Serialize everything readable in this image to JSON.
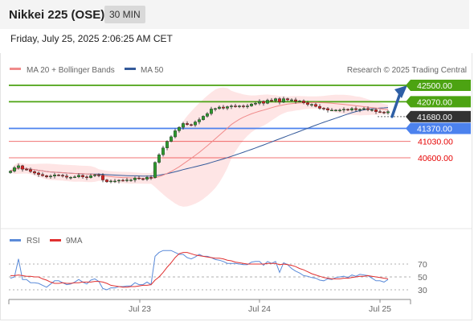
{
  "header": {
    "title": "Nikkei 225 (OSE)",
    "timeframe": "30 MIN",
    "datetime": "Friday, July 25, 2025 2:06:25 AM CET"
  },
  "colors": {
    "resistance": "#4ca312",
    "current": "#333333",
    "pivot": "#4c82ee",
    "support": "#e60000",
    "bollinger": "#fdd3d3",
    "ma20": "#f08b8b",
    "ma50": "#345a9a",
    "arrow": "#2e5fa5",
    "candle_up": "#2d9a2d",
    "candle_down": "#d42020",
    "rsi": "#5b8bd9",
    "rsi_ma": "#e03030"
  },
  "chart_data": [
    {
      "type": "candlestick",
      "title": "",
      "legend": [
        "MA 20 + Bollinger Bands",
        "MA 50"
      ],
      "watermark": "Research © 2025 Trading Central",
      "x_ticks": [
        "Jul 23",
        "Jul 24",
        "Jul 25"
      ],
      "price_axis": {
        "min": 40000,
        "max": 42750
      },
      "current_price": {
        "label": "41680.00",
        "value": 41680
      },
      "levels": [
        {
          "label": "42500.00",
          "value": 42500,
          "kind": "resistance"
        },
        {
          "label": "42070.00",
          "value": 42070,
          "kind": "resistance"
        },
        {
          "label": "41370.00",
          "value": 41370,
          "kind": "pivot"
        },
        {
          "label": "41030.00",
          "value": 41030,
          "kind": "support"
        },
        {
          "label": "40600.00",
          "value": 40600,
          "kind": "support"
        }
      ],
      "close": [
        40250,
        40340,
        40390,
        40300,
        40290,
        40240,
        40200,
        40160,
        40130,
        40100,
        40120,
        40150,
        40140,
        40120,
        40090,
        40090,
        40100,
        40140,
        40100,
        40080,
        40130,
        40150,
        40140,
        40020,
        39970,
        39990,
        39990,
        40010,
        40000,
        40020,
        40020,
        40070,
        40050,
        40040,
        40090,
        40080,
        40480,
        40680,
        40860,
        41030,
        41150,
        41310,
        41400,
        41500,
        41470,
        41460,
        41540,
        41600,
        41690,
        41760,
        41880,
        41890,
        41930,
        41900,
        41940,
        41960,
        41940,
        41960,
        41950,
        41960,
        42010,
        42030,
        42080,
        42030,
        42110,
        42100,
        42150,
        42060,
        42150,
        42120,
        42120,
        42080,
        42090,
        42040,
        42000,
        42000,
        41950,
        41900,
        41890,
        41850,
        41850,
        41850,
        41850,
        41870,
        41850,
        41890,
        41860,
        41870,
        41890,
        41860,
        41860,
        41810,
        41800,
        41780,
        41810
      ]
    },
    {
      "type": "line",
      "title": "",
      "legend": [
        "RSI",
        "9MA"
      ],
      "y_ticks": [
        70,
        50,
        30
      ],
      "ylim": [
        0,
        100
      ],
      "series": [
        {
          "name": "RSI",
          "values": [
            48,
            50,
            78,
            46,
            46,
            41,
            41,
            40,
            37,
            34,
            39,
            44,
            44,
            41,
            38,
            39,
            42,
            46,
            42,
            39,
            45,
            47,
            43,
            32,
            30,
            33,
            33,
            35,
            35,
            36,
            36,
            41,
            38,
            38,
            42,
            38,
            82,
            88,
            91,
            91,
            91,
            88,
            85,
            85,
            80,
            78,
            81,
            85,
            82,
            82,
            80,
            77,
            76,
            74,
            71,
            71,
            71,
            70,
            69,
            69,
            73,
            74,
            74,
            68,
            74,
            71,
            74,
            57,
            72,
            69,
            63,
            59,
            56,
            52,
            51,
            49,
            48,
            45,
            44,
            47,
            46,
            49,
            50,
            51,
            49,
            53,
            51,
            54,
            53,
            52,
            48,
            44,
            44,
            42,
            46
          ]
        },
        {
          "name": "9MA",
          "values": [
            52,
            52,
            53,
            52,
            51,
            51,
            50,
            50,
            47,
            45,
            42,
            40,
            40,
            41,
            40,
            40,
            41,
            41,
            42,
            42,
            42,
            43,
            43,
            42,
            40,
            37,
            36,
            35,
            34,
            34,
            35,
            35,
            36,
            37,
            37,
            38,
            45,
            50,
            57,
            65,
            72,
            80,
            86,
            88,
            88,
            86,
            84,
            83,
            82,
            81,
            80,
            79,
            79,
            78,
            76,
            75,
            73,
            72,
            71,
            70,
            70,
            70,
            70,
            70,
            71,
            71,
            71,
            69,
            70,
            69,
            68,
            66,
            63,
            61,
            58,
            55,
            53,
            51,
            49,
            48,
            47,
            47,
            47,
            48,
            48,
            49,
            50,
            51,
            51,
            52,
            51,
            50,
            49,
            48,
            47
          ]
        }
      ]
    }
  ]
}
